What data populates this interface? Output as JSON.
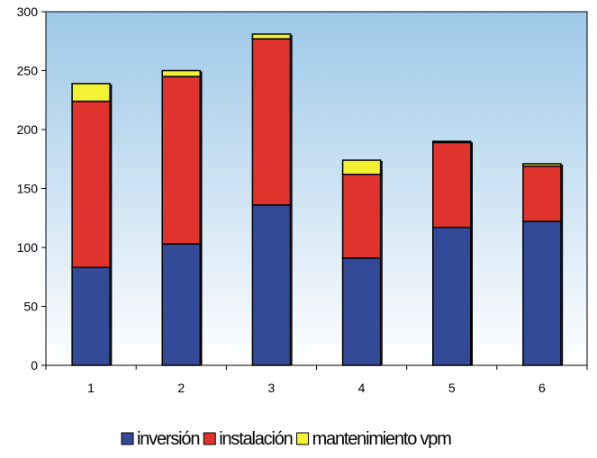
{
  "chart_data": {
    "type": "bar",
    "stacked": true,
    "title": "",
    "xlabel": "",
    "ylabel": "",
    "categories": [
      "1",
      "2",
      "3",
      "4",
      "5",
      "6"
    ],
    "ylim": [
      0,
      300
    ],
    "yticks": [
      0,
      50,
      100,
      150,
      200,
      250,
      300
    ],
    "grid": false,
    "legend_position": "bottom",
    "series": [
      {
        "name": "inversión",
        "color": "#334a99",
        "values": [
          83,
          103,
          136,
          91,
          117,
          122
        ]
      },
      {
        "name": "instalación",
        "color": "#e0332e",
        "values": [
          141,
          142,
          141,
          71,
          72,
          47
        ]
      },
      {
        "name": "mantenimiento vpm",
        "color": "#f2f233",
        "values": [
          15,
          5,
          4,
          12,
          1,
          2
        ]
      }
    ],
    "plot_background": {
      "top": "#9ec8e8",
      "bottom": "#ffffff"
    }
  }
}
